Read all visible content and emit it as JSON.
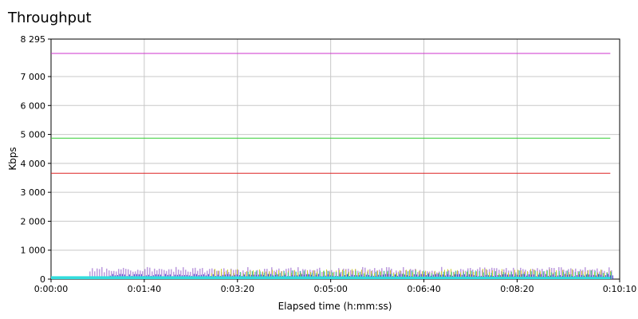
{
  "chart_data": {
    "type": "line",
    "title": "Throughput",
    "xlabel": "Elapsed time (h:mm:ss)",
    "ylabel": "Kbps",
    "xlim": [
      0,
      610
    ],
    "ylim": [
      0,
      8295
    ],
    "x_ticks": [
      {
        "value": 0,
        "label": "0:00:00"
      },
      {
        "value": 100,
        "label": "0:01:40"
      },
      {
        "value": 200,
        "label": "0:03:20"
      },
      {
        "value": 300,
        "label": "0:05:00"
      },
      {
        "value": 400,
        "label": "0:06:40"
      },
      {
        "value": 500,
        "label": "0:08:20"
      },
      {
        "value": 610,
        "label": "0:10:10"
      }
    ],
    "y_ticks": [
      {
        "value": 0,
        "label": "0"
      },
      {
        "value": 1000,
        "label": "1 000"
      },
      {
        "value": 2000,
        "label": "2 000"
      },
      {
        "value": 3000,
        "label": "3 000"
      },
      {
        "value": 4000,
        "label": "4 000"
      },
      {
        "value": 5000,
        "label": "5 000"
      },
      {
        "value": 6000,
        "label": "6 000"
      },
      {
        "value": 7000,
        "label": "7 000"
      },
      {
        "value": 8295,
        "label": "8 295"
      }
    ],
    "grid": true,
    "series": [
      {
        "color": "#cc33cc",
        "x": [
          0,
          600
        ],
        "y": [
          7800,
          7800
        ]
      },
      {
        "color": "#33cc33",
        "x": [
          0,
          600
        ],
        "y": [
          4870,
          4870
        ]
      },
      {
        "color": "#dd2222",
        "x": [
          0,
          600
        ],
        "y": [
          3660,
          3660
        ]
      },
      {
        "color": "#9966cc",
        "x": [
          40,
          600
        ],
        "y": [
          420,
          420
        ],
        "style": "spikes"
      },
      {
        "color": "#cccc33",
        "x": [
          170,
          600
        ],
        "y": [
          360,
          360
        ],
        "style": "spikes"
      },
      {
        "color": "#33cc99",
        "x": [
          200,
          600
        ],
        "y": [
          300,
          300
        ],
        "style": "spikes"
      },
      {
        "color": "#3333cc",
        "x": [
          60,
          600
        ],
        "y": [
          180,
          180
        ],
        "style": "spikes"
      },
      {
        "color": "#33dddd",
        "x": [
          0,
          30,
          600
        ],
        "y": [
          100,
          100,
          80
        ],
        "style": "band"
      }
    ]
  }
}
